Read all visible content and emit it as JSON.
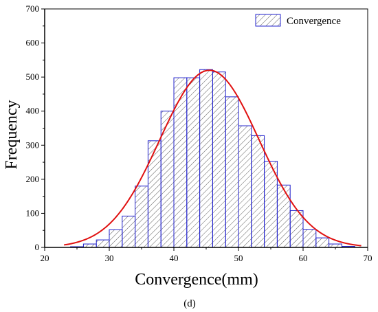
{
  "chart_data": {
    "type": "bar",
    "subtype": "histogram",
    "xlabel": "Convergence(mm)",
    "ylabel": "Frequency",
    "xlim": [
      20,
      70
    ],
    "ylim": [
      0,
      700
    ],
    "xticks": [
      20,
      30,
      40,
      50,
      60,
      70
    ],
    "yticks": [
      0,
      100,
      200,
      300,
      400,
      500,
      600,
      700
    ],
    "bin_width": 2,
    "bins": [
      {
        "start": 24,
        "count": 2
      },
      {
        "start": 26,
        "count": 10
      },
      {
        "start": 28,
        "count": 22
      },
      {
        "start": 30,
        "count": 52
      },
      {
        "start": 32,
        "count": 92
      },
      {
        "start": 34,
        "count": 180
      },
      {
        "start": 36,
        "count": 313
      },
      {
        "start": 38,
        "count": 400
      },
      {
        "start": 40,
        "count": 498
      },
      {
        "start": 42,
        "count": 498
      },
      {
        "start": 44,
        "count": 522
      },
      {
        "start": 46,
        "count": 515
      },
      {
        "start": 48,
        "count": 442
      },
      {
        "start": 50,
        "count": 357
      },
      {
        "start": 52,
        "count": 328
      },
      {
        "start": 54,
        "count": 253
      },
      {
        "start": 56,
        "count": 183
      },
      {
        "start": 58,
        "count": 108
      },
      {
        "start": 60,
        "count": 53
      },
      {
        "start": 62,
        "count": 28
      },
      {
        "start": 64,
        "count": 10
      },
      {
        "start": 66,
        "count": 3
      }
    ],
    "fit_curve": {
      "type": "normal",
      "mean": 45.5,
      "sd": 7.7,
      "peak": 520,
      "x_range": [
        23,
        69
      ]
    },
    "legend": {
      "label": "Convergence",
      "position": "top-right"
    },
    "grid": false
  },
  "caption": "(d)",
  "colors": {
    "bar_edge": "#2020cc",
    "hatch": "#333333",
    "fit_curve": "#e01010",
    "axis": "#000000"
  }
}
